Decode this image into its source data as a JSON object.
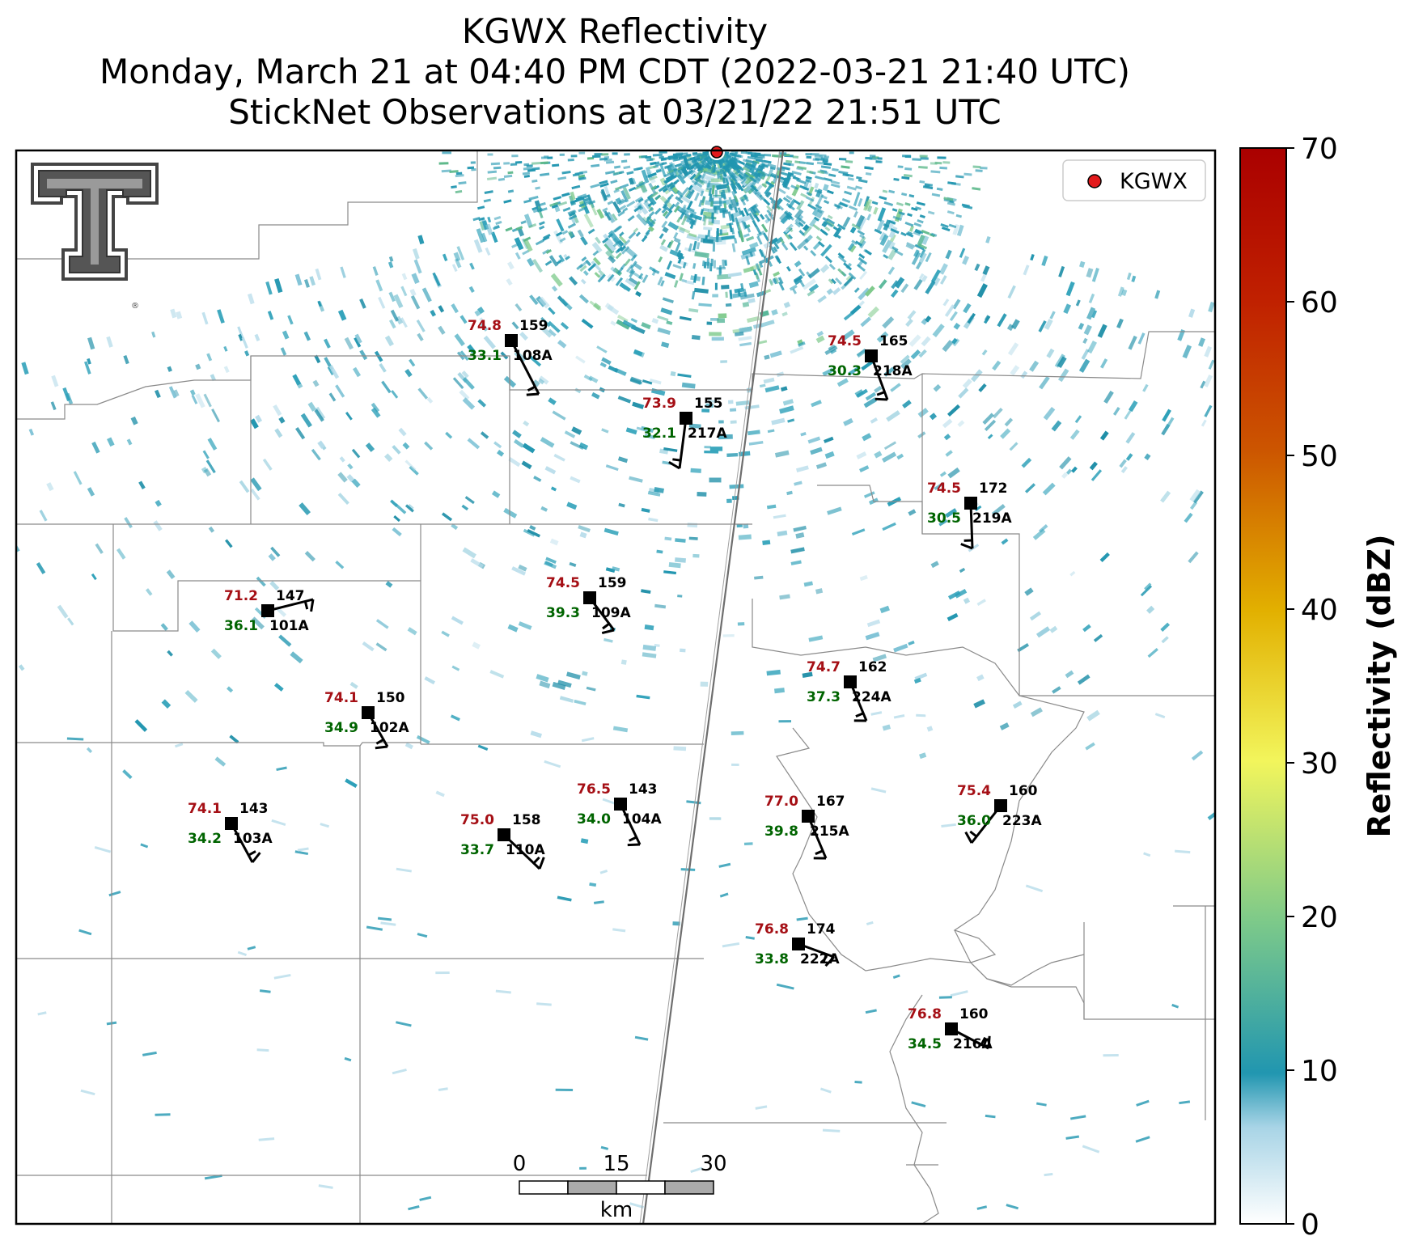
{
  "title": {
    "line1": "KGWX Reflectivity",
    "line2": "Monday, March 21 at 04:40 PM CDT (2022-03-21 21:40 UTC)",
    "line3": "StickNet Observations at 03/21/22 21:51 UTC"
  },
  "radar": {
    "site": "KGWX",
    "marker_color": "#e31a1c"
  },
  "legend": {
    "label": "KGWX"
  },
  "colorbar": {
    "label": "Reflectivity (dBZ)",
    "ticks": [
      "0",
      "10",
      "20",
      "30",
      "40",
      "50",
      "60",
      "70"
    ],
    "min": 0,
    "max": 70,
    "colors": [
      "#ffffff",
      "#2196b0",
      "#7cc98a",
      "#f2f55c",
      "#e2b000",
      "#cc5500",
      "#aa0000"
    ]
  },
  "scale_bar": {
    "ticks": [
      "0",
      "15",
      "30"
    ],
    "unit": "km"
  },
  "stations": [
    {
      "id": "108A",
      "temp": "74.8",
      "dew": "33.1",
      "pres": "159"
    },
    {
      "id": "218A",
      "temp": "74.5",
      "dew": "30.3",
      "pres": "165"
    },
    {
      "id": "217A",
      "temp": "73.9",
      "dew": "32.1",
      "pres": "155"
    },
    {
      "id": "219A",
      "temp": "74.5",
      "dew": "30.5",
      "pres": "172"
    },
    {
      "id": "101A",
      "temp": "71.2",
      "dew": "36.1",
      "pres": "147"
    },
    {
      "id": "109A",
      "temp": "74.5",
      "dew": "39.3",
      "pres": "159"
    },
    {
      "id": "224A",
      "temp": "74.7",
      "dew": "37.3",
      "pres": "162"
    },
    {
      "id": "102A",
      "temp": "74.1",
      "dew": "34.9",
      "pres": "150"
    },
    {
      "id": "104A",
      "temp": "76.5",
      "dew": "34.0",
      "pres": "143"
    },
    {
      "id": "215A",
      "temp": "77.0",
      "dew": "39.8",
      "pres": "167"
    },
    {
      "id": "223A",
      "temp": "75.4",
      "dew": "36.0",
      "pres": "160"
    },
    {
      "id": "103A",
      "temp": "74.1",
      "dew": "34.2",
      "pres": "143"
    },
    {
      "id": "110A",
      "temp": "75.0",
      "dew": "33.7",
      "pres": "158"
    },
    {
      "id": "222A",
      "temp": "76.8",
      "dew": "33.8",
      "pres": "174"
    },
    {
      "id": "216A",
      "temp": "76.8",
      "dew": "34.5",
      "pres": "160"
    }
  ]
}
